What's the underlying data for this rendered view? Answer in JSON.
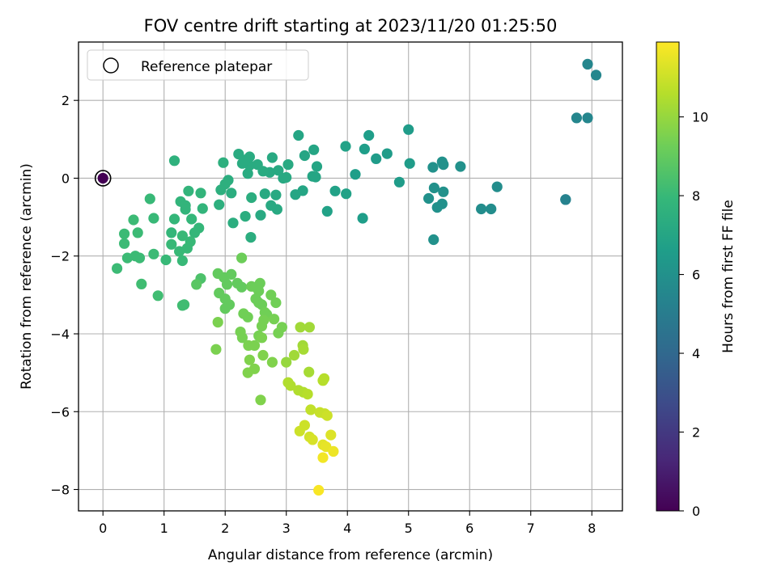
{
  "chart_data": {
    "type": "scatter",
    "title": "FOV centre drift starting at 2023/11/20 01:25:50",
    "xlabel": "Angular distance from reference (arcmin)",
    "ylabel": "Rotation from reference (arcmin)",
    "xlim": [
      -0.4,
      8.5
    ],
    "ylim": [
      -8.55,
      3.5
    ],
    "x_ticks": [
      0,
      1,
      2,
      3,
      4,
      5,
      6,
      7,
      8
    ],
    "y_ticks": [
      -8,
      -6,
      -4,
      -2,
      0,
      2
    ],
    "grid": true,
    "legend": {
      "position": "top-left",
      "entries": [
        "Reference platepar"
      ]
    },
    "reference_point": {
      "x": 0,
      "y": 0,
      "hours": 0
    },
    "colorbar": {
      "label": "Hours from first FF file",
      "range": [
        0,
        11.9
      ],
      "ticks": [
        0,
        2,
        4,
        6,
        8,
        10
      ],
      "colormap": "viridis",
      "colors": [
        "#440154",
        "#482878",
        "#3e4989",
        "#31688e",
        "#26828e",
        "#1f9e89",
        "#35b779",
        "#6ece58",
        "#b5de2b",
        "#fde725"
      ]
    },
    "series": [
      {
        "points": [
          [
            7.93,
            2.93,
            5.5
          ],
          [
            8.07,
            2.65,
            5.5
          ],
          [
            7.75,
            1.55,
            5.5
          ],
          [
            7.93,
            1.55,
            5.5
          ],
          [
            7.57,
            -0.55,
            5.3
          ],
          [
            7.57,
            -0.55,
            5.3
          ],
          [
            6.45,
            -0.22,
            5.8
          ],
          [
            6.19,
            -0.79,
            5.8
          ],
          [
            6.35,
            -0.79,
            5.8
          ],
          [
            5.85,
            0.3,
            6.0
          ],
          [
            5.55,
            0.42,
            6.0
          ],
          [
            5.57,
            0.35,
            6.0
          ],
          [
            5.4,
            0.28,
            6.0
          ],
          [
            5.42,
            -0.25,
            6.0
          ],
          [
            5.57,
            -0.35,
            6.0
          ],
          [
            5.33,
            -0.52,
            6.0
          ],
          [
            5.55,
            -0.66,
            6.0
          ],
          [
            5.47,
            -0.75,
            6.0
          ],
          [
            5.41,
            -1.58,
            6.0
          ],
          [
            5.0,
            1.25,
            6.5
          ],
          [
            5.02,
            0.38,
            6.5
          ],
          [
            4.85,
            -0.1,
            6.5
          ],
          [
            4.65,
            0.63,
            6.5
          ],
          [
            4.47,
            0.5,
            6.5
          ],
          [
            4.35,
            1.1,
            6.6
          ],
          [
            4.28,
            0.75,
            6.6
          ],
          [
            4.13,
            0.1,
            6.6
          ],
          [
            4.25,
            -1.03,
            6.6
          ],
          [
            3.97,
            0.82,
            6.8
          ],
          [
            3.98,
            -0.4,
            6.8
          ],
          [
            3.8,
            -0.33,
            6.8
          ],
          [
            3.67,
            -0.85,
            6.8
          ],
          [
            3.45,
            0.73,
            7.0
          ],
          [
            3.5,
            0.3,
            7.0
          ],
          [
            3.43,
            0.05,
            7.0
          ],
          [
            3.48,
            0.03,
            7.0
          ],
          [
            3.2,
            1.1,
            7.0
          ],
          [
            3.3,
            0.58,
            7.0
          ],
          [
            3.27,
            -0.32,
            7.0
          ],
          [
            3.15,
            -0.42,
            7.0
          ],
          [
            3.03,
            0.35,
            7.2
          ],
          [
            3.0,
            0.02,
            7.2
          ],
          [
            2.95,
            0.0,
            7.2
          ],
          [
            2.87,
            0.2,
            7.2
          ],
          [
            2.77,
            0.53,
            7.2
          ],
          [
            2.73,
            0.15,
            7.2
          ],
          [
            2.83,
            -0.43,
            7.2
          ],
          [
            2.85,
            -0.8,
            7.2
          ],
          [
            2.75,
            -0.7,
            7.2
          ],
          [
            2.65,
            -0.4,
            7.2
          ],
          [
            2.58,
            -0.95,
            7.2
          ],
          [
            2.62,
            0.18,
            7.3
          ],
          [
            2.53,
            0.35,
            7.3
          ],
          [
            2.4,
            0.55,
            7.3
          ],
          [
            2.4,
            0.33,
            7.3
          ],
          [
            2.37,
            0.12,
            7.3
          ],
          [
            2.33,
            0.47,
            7.3
          ],
          [
            2.28,
            0.38,
            7.3
          ],
          [
            2.22,
            0.62,
            7.3
          ],
          [
            2.43,
            -0.5,
            7.4
          ],
          [
            2.1,
            -0.38,
            7.4
          ],
          [
            2.33,
            -0.98,
            7.4
          ],
          [
            2.13,
            -1.15,
            7.4
          ],
          [
            2.42,
            -1.52,
            7.4
          ],
          [
            2.05,
            -0.05,
            7.4
          ],
          [
            2.0,
            -0.15,
            7.5
          ],
          [
            1.93,
            -0.3,
            7.5
          ],
          [
            1.97,
            0.4,
            7.5
          ],
          [
            1.9,
            -0.68,
            7.5
          ],
          [
            1.17,
            0.45,
            7.6
          ],
          [
            1.6,
            -0.38,
            7.8
          ],
          [
            1.4,
            -0.33,
            7.8
          ],
          [
            1.27,
            -0.6,
            7.8
          ],
          [
            1.35,
            -0.7,
            7.8
          ],
          [
            1.35,
            -0.8,
            7.8
          ],
          [
            1.63,
            -0.78,
            7.8
          ],
          [
            1.45,
            -1.05,
            7.9
          ],
          [
            1.17,
            -1.05,
            7.9
          ],
          [
            1.57,
            -1.28,
            7.9
          ],
          [
            1.5,
            -1.4,
            7.9
          ],
          [
            1.12,
            -1.4,
            7.9
          ],
          [
            1.3,
            -1.48,
            8.0
          ],
          [
            1.43,
            -1.63,
            8.0
          ],
          [
            1.38,
            -1.8,
            8.0
          ],
          [
            1.25,
            -1.88,
            8.0
          ],
          [
            1.12,
            -1.7,
            8.0
          ],
          [
            1.03,
            -2.1,
            8.0
          ],
          [
            1.3,
            -2.12,
            8.0
          ],
          [
            0.77,
            -0.53,
            8.0
          ],
          [
            0.83,
            -1.03,
            8.0
          ],
          [
            0.5,
            -1.07,
            8.1
          ],
          [
            0.57,
            -1.4,
            8.1
          ],
          [
            0.35,
            -1.43,
            8.1
          ],
          [
            0.35,
            -1.68,
            8.1
          ],
          [
            0.4,
            -2.05,
            8.1
          ],
          [
            0.53,
            -2.0,
            8.1
          ],
          [
            0.6,
            -2.05,
            8.1
          ],
          [
            0.83,
            -1.95,
            8.1
          ],
          [
            0.23,
            -2.32,
            8.1
          ],
          [
            0.63,
            -2.72,
            8.2
          ],
          [
            0.9,
            -3.02,
            8.2
          ],
          [
            1.3,
            -3.27,
            8.2
          ],
          [
            1.33,
            -3.25,
            8.2
          ],
          [
            1.6,
            -2.58,
            8.5
          ],
          [
            1.53,
            -2.73,
            8.8
          ],
          [
            1.88,
            -2.45,
            9.0
          ],
          [
            1.98,
            -2.55,
            9.0
          ],
          [
            2.1,
            -2.47,
            9.0
          ],
          [
            2.03,
            -2.73,
            9.0
          ],
          [
            2.2,
            -2.7,
            9.0
          ],
          [
            2.27,
            -2.8,
            9.0
          ],
          [
            1.9,
            -2.95,
            9.0
          ],
          [
            2.0,
            -3.1,
            9.0
          ],
          [
            2.07,
            -3.25,
            9.0
          ],
          [
            2.0,
            -3.35,
            9.0
          ],
          [
            2.27,
            -2.05,
            9.2
          ],
          [
            2.43,
            -2.78,
            9.2
          ],
          [
            2.5,
            -2.8,
            9.2
          ],
          [
            2.57,
            -2.7,
            9.2
          ],
          [
            2.55,
            -2.9,
            9.2
          ],
          [
            2.5,
            -3.1,
            9.2
          ],
          [
            2.55,
            -3.2,
            9.2
          ],
          [
            2.6,
            -3.25,
            9.2
          ],
          [
            2.65,
            -3.45,
            9.3
          ],
          [
            2.68,
            -3.5,
            9.3
          ],
          [
            2.3,
            -3.48,
            9.3
          ],
          [
            2.37,
            -3.57,
            9.3
          ],
          [
            2.75,
            -3.0,
            9.3
          ],
          [
            2.83,
            -3.2,
            9.3
          ],
          [
            2.8,
            -3.62,
            9.4
          ],
          [
            2.63,
            -3.65,
            9.4
          ],
          [
            2.93,
            -3.83,
            9.4
          ],
          [
            2.87,
            -3.98,
            9.4
          ],
          [
            2.6,
            -3.8,
            9.4
          ],
          [
            2.55,
            -4.05,
            9.4
          ],
          [
            2.25,
            -3.95,
            9.4
          ],
          [
            2.28,
            -4.1,
            9.4
          ],
          [
            2.38,
            -4.3,
            9.5
          ],
          [
            2.48,
            -4.3,
            9.5
          ],
          [
            2.6,
            -4.1,
            9.5
          ],
          [
            1.88,
            -3.7,
            9.5
          ],
          [
            1.85,
            -4.4,
            9.5
          ],
          [
            2.62,
            -4.55,
            9.6
          ],
          [
            2.4,
            -4.67,
            9.6
          ],
          [
            2.77,
            -4.73,
            9.6
          ],
          [
            2.48,
            -4.9,
            9.6
          ],
          [
            2.37,
            -5.0,
            9.6
          ],
          [
            2.58,
            -5.7,
            9.6
          ],
          [
            3.0,
            -4.73,
            10.0
          ],
          [
            3.13,
            -4.55,
            10.2
          ],
          [
            3.23,
            -3.83,
            10.2
          ],
          [
            3.38,
            -3.83,
            10.2
          ],
          [
            3.27,
            -4.3,
            10.2
          ],
          [
            3.28,
            -4.4,
            10.3
          ],
          [
            3.37,
            -4.98,
            10.3
          ],
          [
            3.03,
            -5.25,
            10.5
          ],
          [
            3.07,
            -5.33,
            10.5
          ],
          [
            3.2,
            -5.45,
            10.5
          ],
          [
            3.28,
            -5.5,
            10.5
          ],
          [
            3.35,
            -5.55,
            10.6
          ],
          [
            3.6,
            -5.2,
            10.6
          ],
          [
            3.62,
            -5.15,
            10.6
          ],
          [
            3.4,
            -5.95,
            10.8
          ],
          [
            3.55,
            -6.02,
            10.9
          ],
          [
            3.63,
            -6.05,
            10.9
          ],
          [
            3.67,
            -6.1,
            11.0
          ],
          [
            3.3,
            -6.35,
            11.0
          ],
          [
            3.22,
            -6.5,
            11.0
          ],
          [
            3.38,
            -6.65,
            11.1
          ],
          [
            3.43,
            -6.72,
            11.2
          ],
          [
            3.73,
            -6.6,
            11.3
          ],
          [
            3.6,
            -6.85,
            11.4
          ],
          [
            3.65,
            -6.9,
            11.5
          ],
          [
            3.77,
            -7.02,
            11.6
          ],
          [
            3.6,
            -7.18,
            11.7
          ],
          [
            3.53,
            -8.02,
            11.8
          ]
        ]
      }
    ]
  }
}
